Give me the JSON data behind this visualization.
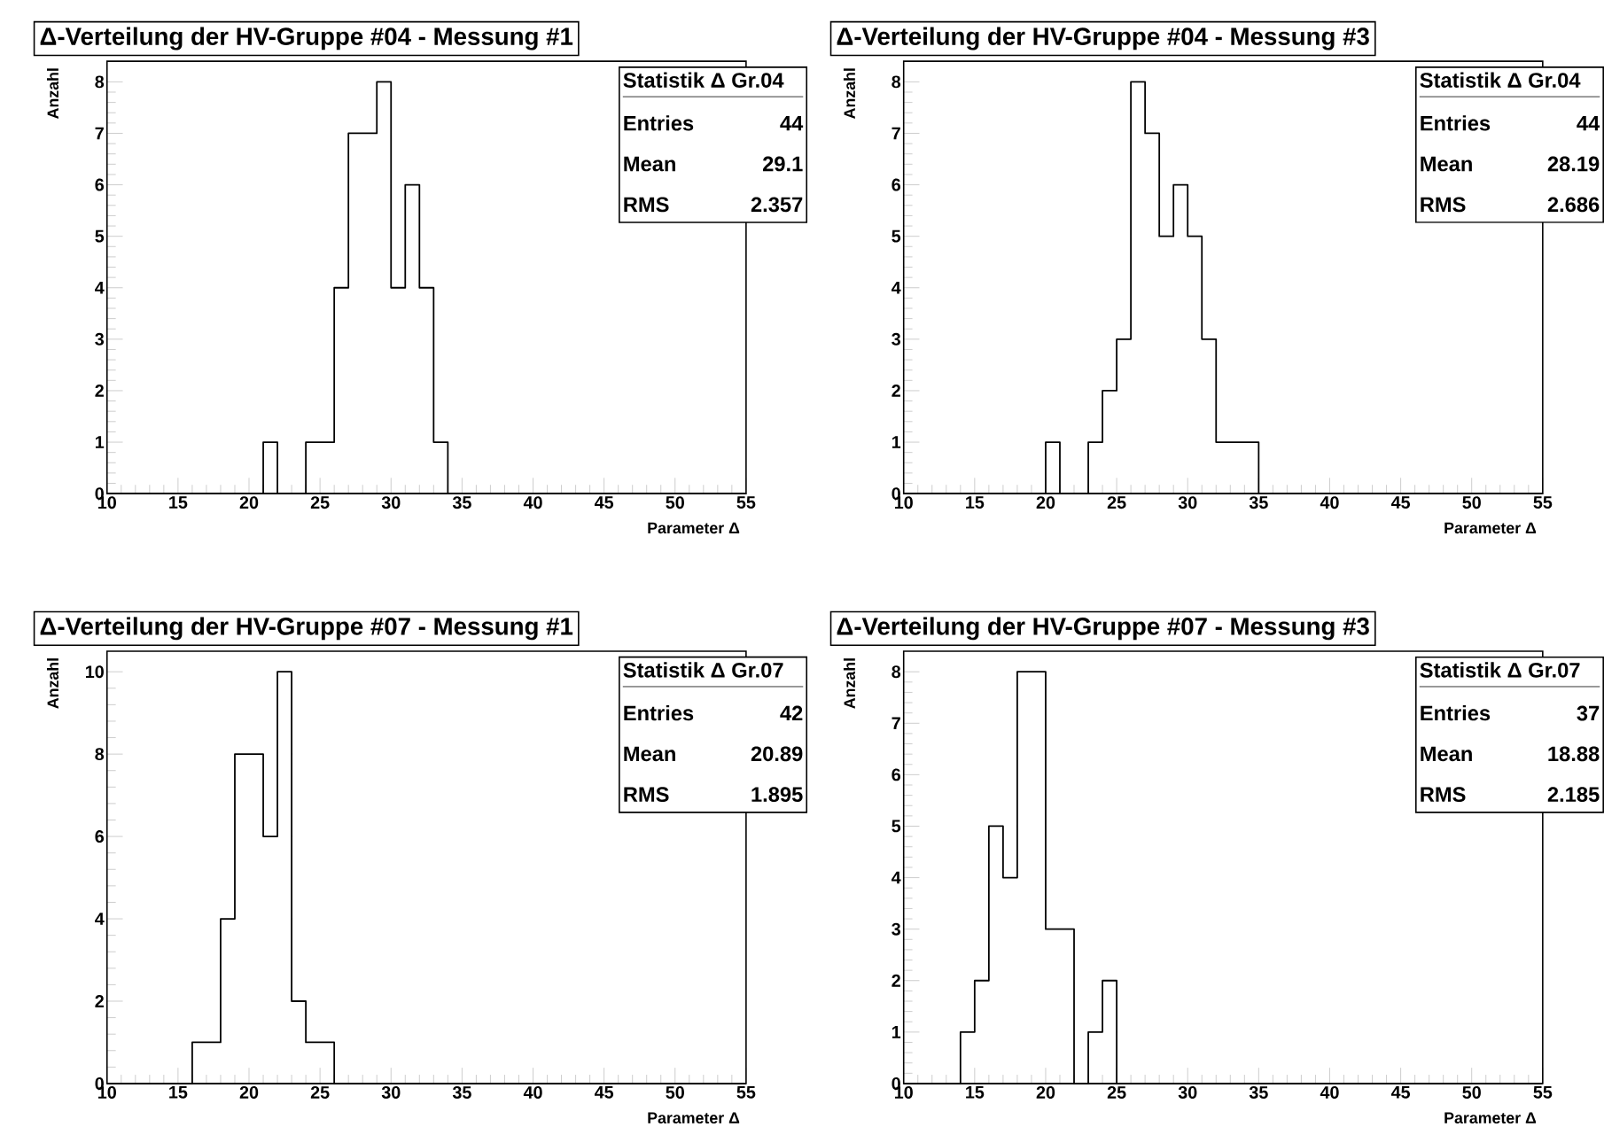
{
  "chart_data": [
    {
      "type": "histogram",
      "title": "Δ-Verteilung der HV-Gruppe #04 - Messung #1",
      "xlabel": "Parameter Δ",
      "ylabel": "Anzahl",
      "color": "#000000",
      "bins": [
        10,
        11,
        12,
        13,
        14,
        15,
        16,
        17,
        18,
        19,
        20,
        21,
        22,
        23,
        24,
        25,
        26,
        27,
        28,
        29,
        30,
        31,
        32,
        33,
        34,
        35,
        36,
        37,
        38,
        39,
        40,
        41,
        42,
        43,
        44,
        45,
        46,
        47,
        48,
        49,
        50,
        51,
        52,
        53,
        54,
        55
      ],
      "values": [
        0,
        0,
        0,
        0,
        0,
        0,
        0,
        0,
        0,
        0,
        0,
        1,
        0,
        0,
        1,
        1,
        4,
        7,
        7,
        8,
        4,
        6,
        4,
        1,
        0,
        0,
        0,
        0,
        0,
        0,
        0,
        0,
        0,
        0,
        0,
        0,
        0,
        0,
        0,
        0,
        0,
        0,
        0,
        0,
        0
      ],
      "xlim": [
        10,
        55
      ],
      "xticks": [
        10,
        15,
        20,
        25,
        30,
        35,
        40,
        45,
        50,
        55
      ],
      "ylim": [
        0,
        8.4
      ],
      "yticks": [
        0,
        1,
        2,
        3,
        4,
        5,
        6,
        7,
        8
      ],
      "annotations": [
        "Statistik Δ Gr.04",
        "Entries",
        "44",
        "Mean",
        "29.1",
        "RMS",
        "2.357"
      ]
    },
    {
      "type": "histogram",
      "title": "Δ-Verteilung der HV-Gruppe #04 - Messung #3",
      "xlabel": "Parameter Δ",
      "ylabel": "Anzahl",
      "color": "#000000",
      "bins": [
        10,
        11,
        12,
        13,
        14,
        15,
        16,
        17,
        18,
        19,
        20,
        21,
        22,
        23,
        24,
        25,
        26,
        27,
        28,
        29,
        30,
        31,
        32,
        33,
        34,
        35,
        36,
        37,
        38,
        39,
        40,
        41,
        42,
        43,
        44,
        45,
        46,
        47,
        48,
        49,
        50,
        51,
        52,
        53,
        54,
        55
      ],
      "values": [
        0,
        0,
        0,
        0,
        0,
        0,
        0,
        0,
        0,
        0,
        1,
        0,
        0,
        1,
        2,
        3,
        8,
        7,
        5,
        6,
        5,
        3,
        1,
        1,
        1,
        0,
        0,
        0,
        0,
        0,
        0,
        0,
        0,
        0,
        0,
        0,
        0,
        0,
        0,
        0,
        0,
        0,
        0,
        0,
        0
      ],
      "xlim": [
        10,
        55
      ],
      "xticks": [
        10,
        15,
        20,
        25,
        30,
        35,
        40,
        45,
        50,
        55
      ],
      "ylim": [
        0,
        8.4
      ],
      "yticks": [
        0,
        1,
        2,
        3,
        4,
        5,
        6,
        7,
        8
      ],
      "annotations": [
        "Statistik Δ Gr.04",
        "Entries",
        "44",
        "Mean",
        "28.19",
        "RMS",
        "2.686"
      ]
    },
    {
      "type": "histogram",
      "title": "Δ-Verteilung der HV-Gruppe #07 - Messung #1",
      "xlabel": "Parameter Δ",
      "ylabel": "Anzahl",
      "color": "#000000",
      "bins": [
        10,
        11,
        12,
        13,
        14,
        15,
        16,
        17,
        18,
        19,
        20,
        21,
        22,
        23,
        24,
        25,
        26,
        27,
        28,
        29,
        30,
        31,
        32,
        33,
        34,
        35,
        36,
        37,
        38,
        39,
        40,
        41,
        42,
        43,
        44,
        45,
        46,
        47,
        48,
        49,
        50,
        51,
        52,
        53,
        54,
        55
      ],
      "values": [
        0,
        0,
        0,
        0,
        0,
        0,
        1,
        1,
        4,
        8,
        8,
        6,
        10,
        2,
        1,
        1,
        0,
        0,
        0,
        0,
        0,
        0,
        0,
        0,
        0,
        0,
        0,
        0,
        0,
        0,
        0,
        0,
        0,
        0,
        0,
        0,
        0,
        0,
        0,
        0,
        0,
        0,
        0,
        0,
        0
      ],
      "xlim": [
        10,
        55
      ],
      "xticks": [
        10,
        15,
        20,
        25,
        30,
        35,
        40,
        45,
        50,
        55
      ],
      "ylim": [
        0,
        10.5
      ],
      "yticks": [
        0,
        2,
        4,
        6,
        8,
        10
      ],
      "annotations": [
        "Statistik Δ Gr.07",
        "Entries",
        "42",
        "Mean",
        "20.89",
        "RMS",
        "1.895"
      ]
    },
    {
      "type": "histogram",
      "title": "Δ-Verteilung der HV-Gruppe #07 - Messung #3",
      "xlabel": "Parameter Δ",
      "ylabel": "Anzahl",
      "color": "#000000",
      "bins": [
        10,
        11,
        12,
        13,
        14,
        15,
        16,
        17,
        18,
        19,
        20,
        21,
        22,
        23,
        24,
        25,
        26,
        27,
        28,
        29,
        30,
        31,
        32,
        33,
        34,
        35,
        36,
        37,
        38,
        39,
        40,
        41,
        42,
        43,
        44,
        45,
        46,
        47,
        48,
        49,
        50,
        51,
        52,
        53,
        54,
        55
      ],
      "values": [
        0,
        0,
        0,
        0,
        1,
        2,
        5,
        4,
        8,
        8,
        3,
        3,
        0,
        1,
        2,
        0,
        0,
        0,
        0,
        0,
        0,
        0,
        0,
        0,
        0,
        0,
        0,
        0,
        0,
        0,
        0,
        0,
        0,
        0,
        0,
        0,
        0,
        0,
        0,
        0,
        0,
        0,
        0,
        0,
        0
      ],
      "xlim": [
        10,
        55
      ],
      "xticks": [
        10,
        15,
        20,
        25,
        30,
        35,
        40,
        45,
        50,
        55
      ],
      "ylim": [
        0,
        8.4
      ],
      "yticks": [
        0,
        1,
        2,
        3,
        4,
        5,
        6,
        7,
        8
      ],
      "annotations": [
        "Statistik Δ Gr.07",
        "Entries",
        "37",
        "Mean",
        "18.88",
        "RMS",
        "2.185"
      ]
    }
  ]
}
